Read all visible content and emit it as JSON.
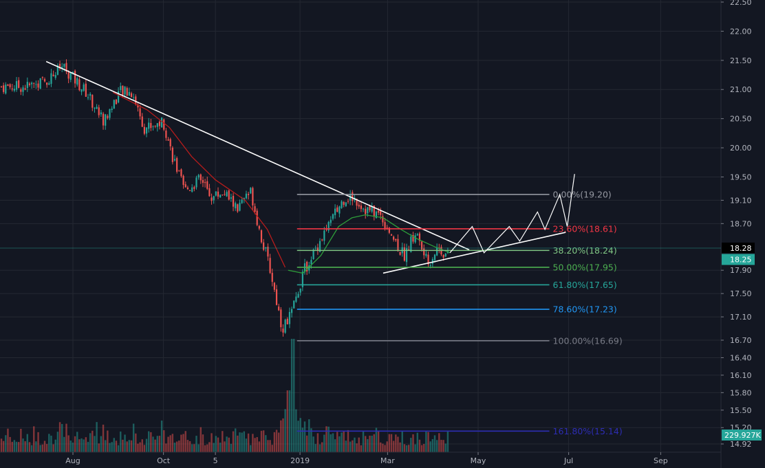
{
  "chart_data": {
    "type": "candlestick",
    "x_ticks": [
      "Aug",
      "Oct",
      "5",
      "2019",
      "Mar",
      "May",
      "Jul",
      "Sep"
    ],
    "y_ticks": [
      "22.50",
      "22.00",
      "21.50",
      "21.00",
      "20.50",
      "20.00",
      "19.50",
      "19.10",
      "18.70",
      "18.28",
      "18.25",
      "17.90",
      "17.50",
      "17.10",
      "16.70",
      "16.40",
      "16.10",
      "15.80",
      "15.50",
      "15.20",
      "14.92"
    ],
    "price_axis_range": [
      14.85,
      22.55
    ],
    "price_scale_labels": [
      {
        "price": 22.5,
        "label": "22.50"
      },
      {
        "price": 22.0,
        "label": "22.00"
      },
      {
        "price": 21.5,
        "label": "21.50"
      },
      {
        "price": 21.0,
        "label": "21.00"
      },
      {
        "price": 20.5,
        "label": "20.50"
      },
      {
        "price": 20.0,
        "label": "20.00"
      },
      {
        "price": 19.5,
        "label": "19.50"
      },
      {
        "price": 19.1,
        "label": "19.10"
      },
      {
        "price": 18.7,
        "label": "18.70"
      },
      {
        "price": 17.9,
        "label": "17.90"
      },
      {
        "price": 17.5,
        "label": "17.50"
      },
      {
        "price": 17.1,
        "label": "17.10"
      },
      {
        "price": 16.7,
        "label": "16.70"
      },
      {
        "price": 16.4,
        "label": "16.40"
      },
      {
        "price": 16.1,
        "label": "16.10"
      },
      {
        "price": 15.8,
        "label": "15.80"
      },
      {
        "price": 15.5,
        "label": "15.50"
      },
      {
        "price": 15.2,
        "label": "15.20"
      },
      {
        "price": 14.92,
        "label": "14.92"
      }
    ],
    "time_labels": [
      {
        "label": "Aug",
        "date": "2018-08-01"
      },
      {
        "label": "Oct",
        "date": "2018-10-01"
      },
      {
        "label": "5",
        "date": "2018-11-05"
      },
      {
        "label": "2019",
        "date": "2019-01-01"
      },
      {
        "label": "Mar",
        "date": "2019-03-01"
      },
      {
        "label": "May",
        "date": "2019-05-01"
      },
      {
        "label": "Jul",
        "date": "2019-07-01"
      },
      {
        "label": "Sep",
        "date": "2019-09-01"
      }
    ],
    "price_path": [
      {
        "date": "2018-07-01",
        "price": 21.05
      },
      {
        "date": "2018-07-14",
        "price": 21.15
      },
      {
        "date": "2018-07-25",
        "price": 21.4
      },
      {
        "date": "2018-08-10",
        "price": 20.95
      },
      {
        "date": "2018-08-22",
        "price": 20.45
      },
      {
        "date": "2018-09-01",
        "price": 20.95
      },
      {
        "date": "2018-09-10",
        "price": 20.95
      },
      {
        "date": "2018-09-18",
        "price": 20.35
      },
      {
        "date": "2018-10-01",
        "price": 20.45
      },
      {
        "date": "2018-10-06",
        "price": 19.95
      },
      {
        "date": "2018-10-15",
        "price": 19.25
      },
      {
        "date": "2018-10-25",
        "price": 19.45
      },
      {
        "date": "2018-11-03",
        "price": 19.15
      },
      {
        "date": "2018-11-10",
        "price": 19.25
      },
      {
        "date": "2018-11-20",
        "price": 18.95
      },
      {
        "date": "2018-11-29",
        "price": 19.25
      },
      {
        "date": "2018-12-05",
        "price": 18.55
      },
      {
        "date": "2018-12-12",
        "price": 17.9
      },
      {
        "date": "2018-12-20",
        "price": 16.9
      },
      {
        "date": "2018-12-27",
        "price": 17.2
      },
      {
        "date": "2019-01-03",
        "price": 17.85
      },
      {
        "date": "2019-01-12",
        "price": 18.3
      },
      {
        "date": "2019-01-22",
        "price": 18.75
      },
      {
        "date": "2019-01-31",
        "price": 19.15
      },
      {
        "date": "2019-02-06",
        "price": 19.15
      },
      {
        "date": "2019-02-14",
        "price": 18.95
      },
      {
        "date": "2019-02-24",
        "price": 18.85
      },
      {
        "date": "2019-03-04",
        "price": 18.5
      },
      {
        "date": "2019-03-12",
        "price": 18.15
      },
      {
        "date": "2019-03-20",
        "price": 18.55
      },
      {
        "date": "2019-03-28",
        "price": 18.0
      },
      {
        "date": "2019-04-04",
        "price": 18.3
      },
      {
        "date": "2019-04-12",
        "price": 18.1
      }
    ],
    "moving_average": [
      {
        "date": "2018-08-28",
        "price": 20.95
      },
      {
        "date": "2018-09-20",
        "price": 20.65
      },
      {
        "date": "2018-10-05",
        "price": 20.35
      },
      {
        "date": "2018-10-20",
        "price": 19.85
      },
      {
        "date": "2018-11-05",
        "price": 19.45
      },
      {
        "date": "2018-11-25",
        "price": 19.1
      },
      {
        "date": "2018-12-10",
        "price": 18.6
      },
      {
        "date": "2018-12-22",
        "price": 17.95
      }
    ],
    "moving_average_2": [
      {
        "date": "2018-12-24",
        "price": 17.9
      },
      {
        "date": "2019-01-03",
        "price": 17.85
      },
      {
        "date": "2019-01-15",
        "price": 18.15
      },
      {
        "date": "2019-01-27",
        "price": 18.65
      },
      {
        "date": "2019-02-05",
        "price": 18.8
      },
      {
        "date": "2019-02-14",
        "price": 18.85
      },
      {
        "date": "2019-02-26",
        "price": 18.8
      },
      {
        "date": "2019-03-10",
        "price": 18.6
      },
      {
        "date": "2019-03-20",
        "price": 18.45
      },
      {
        "date": "2019-04-02",
        "price": 18.3
      },
      {
        "date": "2019-04-12",
        "price": 18.2
      }
    ],
    "fib_retracement": {
      "start_date": "2018-12-30",
      "end_date": "2019-06-18",
      "levels": [
        {
          "label": "0.00%(19.20)",
          "price": 19.2,
          "color": "#9598a1"
        },
        {
          "label": "23.60%(18.61)",
          "price": 18.61,
          "color": "#f23645"
        },
        {
          "label": "38.20%(18.24)",
          "price": 18.24,
          "color": "#81c784"
        },
        {
          "label": "50.00%(17.95)",
          "price": 17.95,
          "color": "#4caf50"
        },
        {
          "label": "61.80%(17.65)",
          "price": 17.65,
          "color": "#26a69a"
        },
        {
          "label": "78.60%(17.23)",
          "price": 17.23,
          "color": "#2196f3"
        },
        {
          "label": "100.00%(16.69)",
          "price": 16.69,
          "color": "#787b86"
        },
        {
          "label": "161.80%(15.14)",
          "price": 15.14,
          "color": "#2d2db4"
        }
      ]
    },
    "trendlines": [
      {
        "name": "downtrend",
        "points": [
          {
            "date": "2018-07-14",
            "price": 21.48
          },
          {
            "date": "2019-04-25",
            "price": 18.25
          }
        ]
      },
      {
        "name": "uptrend",
        "points": [
          {
            "date": "2019-02-26",
            "price": 17.85
          },
          {
            "date": "2019-06-29",
            "price": 18.55
          }
        ]
      }
    ],
    "projection": [
      {
        "date": "2019-04-12",
        "price": 18.2
      },
      {
        "date": "2019-04-27",
        "price": 18.65
      },
      {
        "date": "2019-05-05",
        "price": 18.2
      },
      {
        "date": "2019-05-22",
        "price": 18.65
      },
      {
        "date": "2019-05-29",
        "price": 18.4
      },
      {
        "date": "2019-06-10",
        "price": 18.9
      },
      {
        "date": "2019-06-15",
        "price": 18.6
      },
      {
        "date": "2019-06-25",
        "price": 19.2
      },
      {
        "date": "2019-06-30",
        "price": 18.65
      },
      {
        "date": "2019-07-05",
        "price": 19.55
      }
    ],
    "volume": {
      "max_date": "2018-12-27",
      "max_label": "spike"
    },
    "current_price": "18.28",
    "last_price": "18.25",
    "volume_label": "229.927K",
    "colors": {
      "up": "#26a69a",
      "down": "#ef5350",
      "background": "#131722",
      "grid": "#242832",
      "ma": "#b71c1c",
      "ma2": "#2e9e3a",
      "projection": "#ffffff",
      "trend": "#ffffff"
    }
  }
}
